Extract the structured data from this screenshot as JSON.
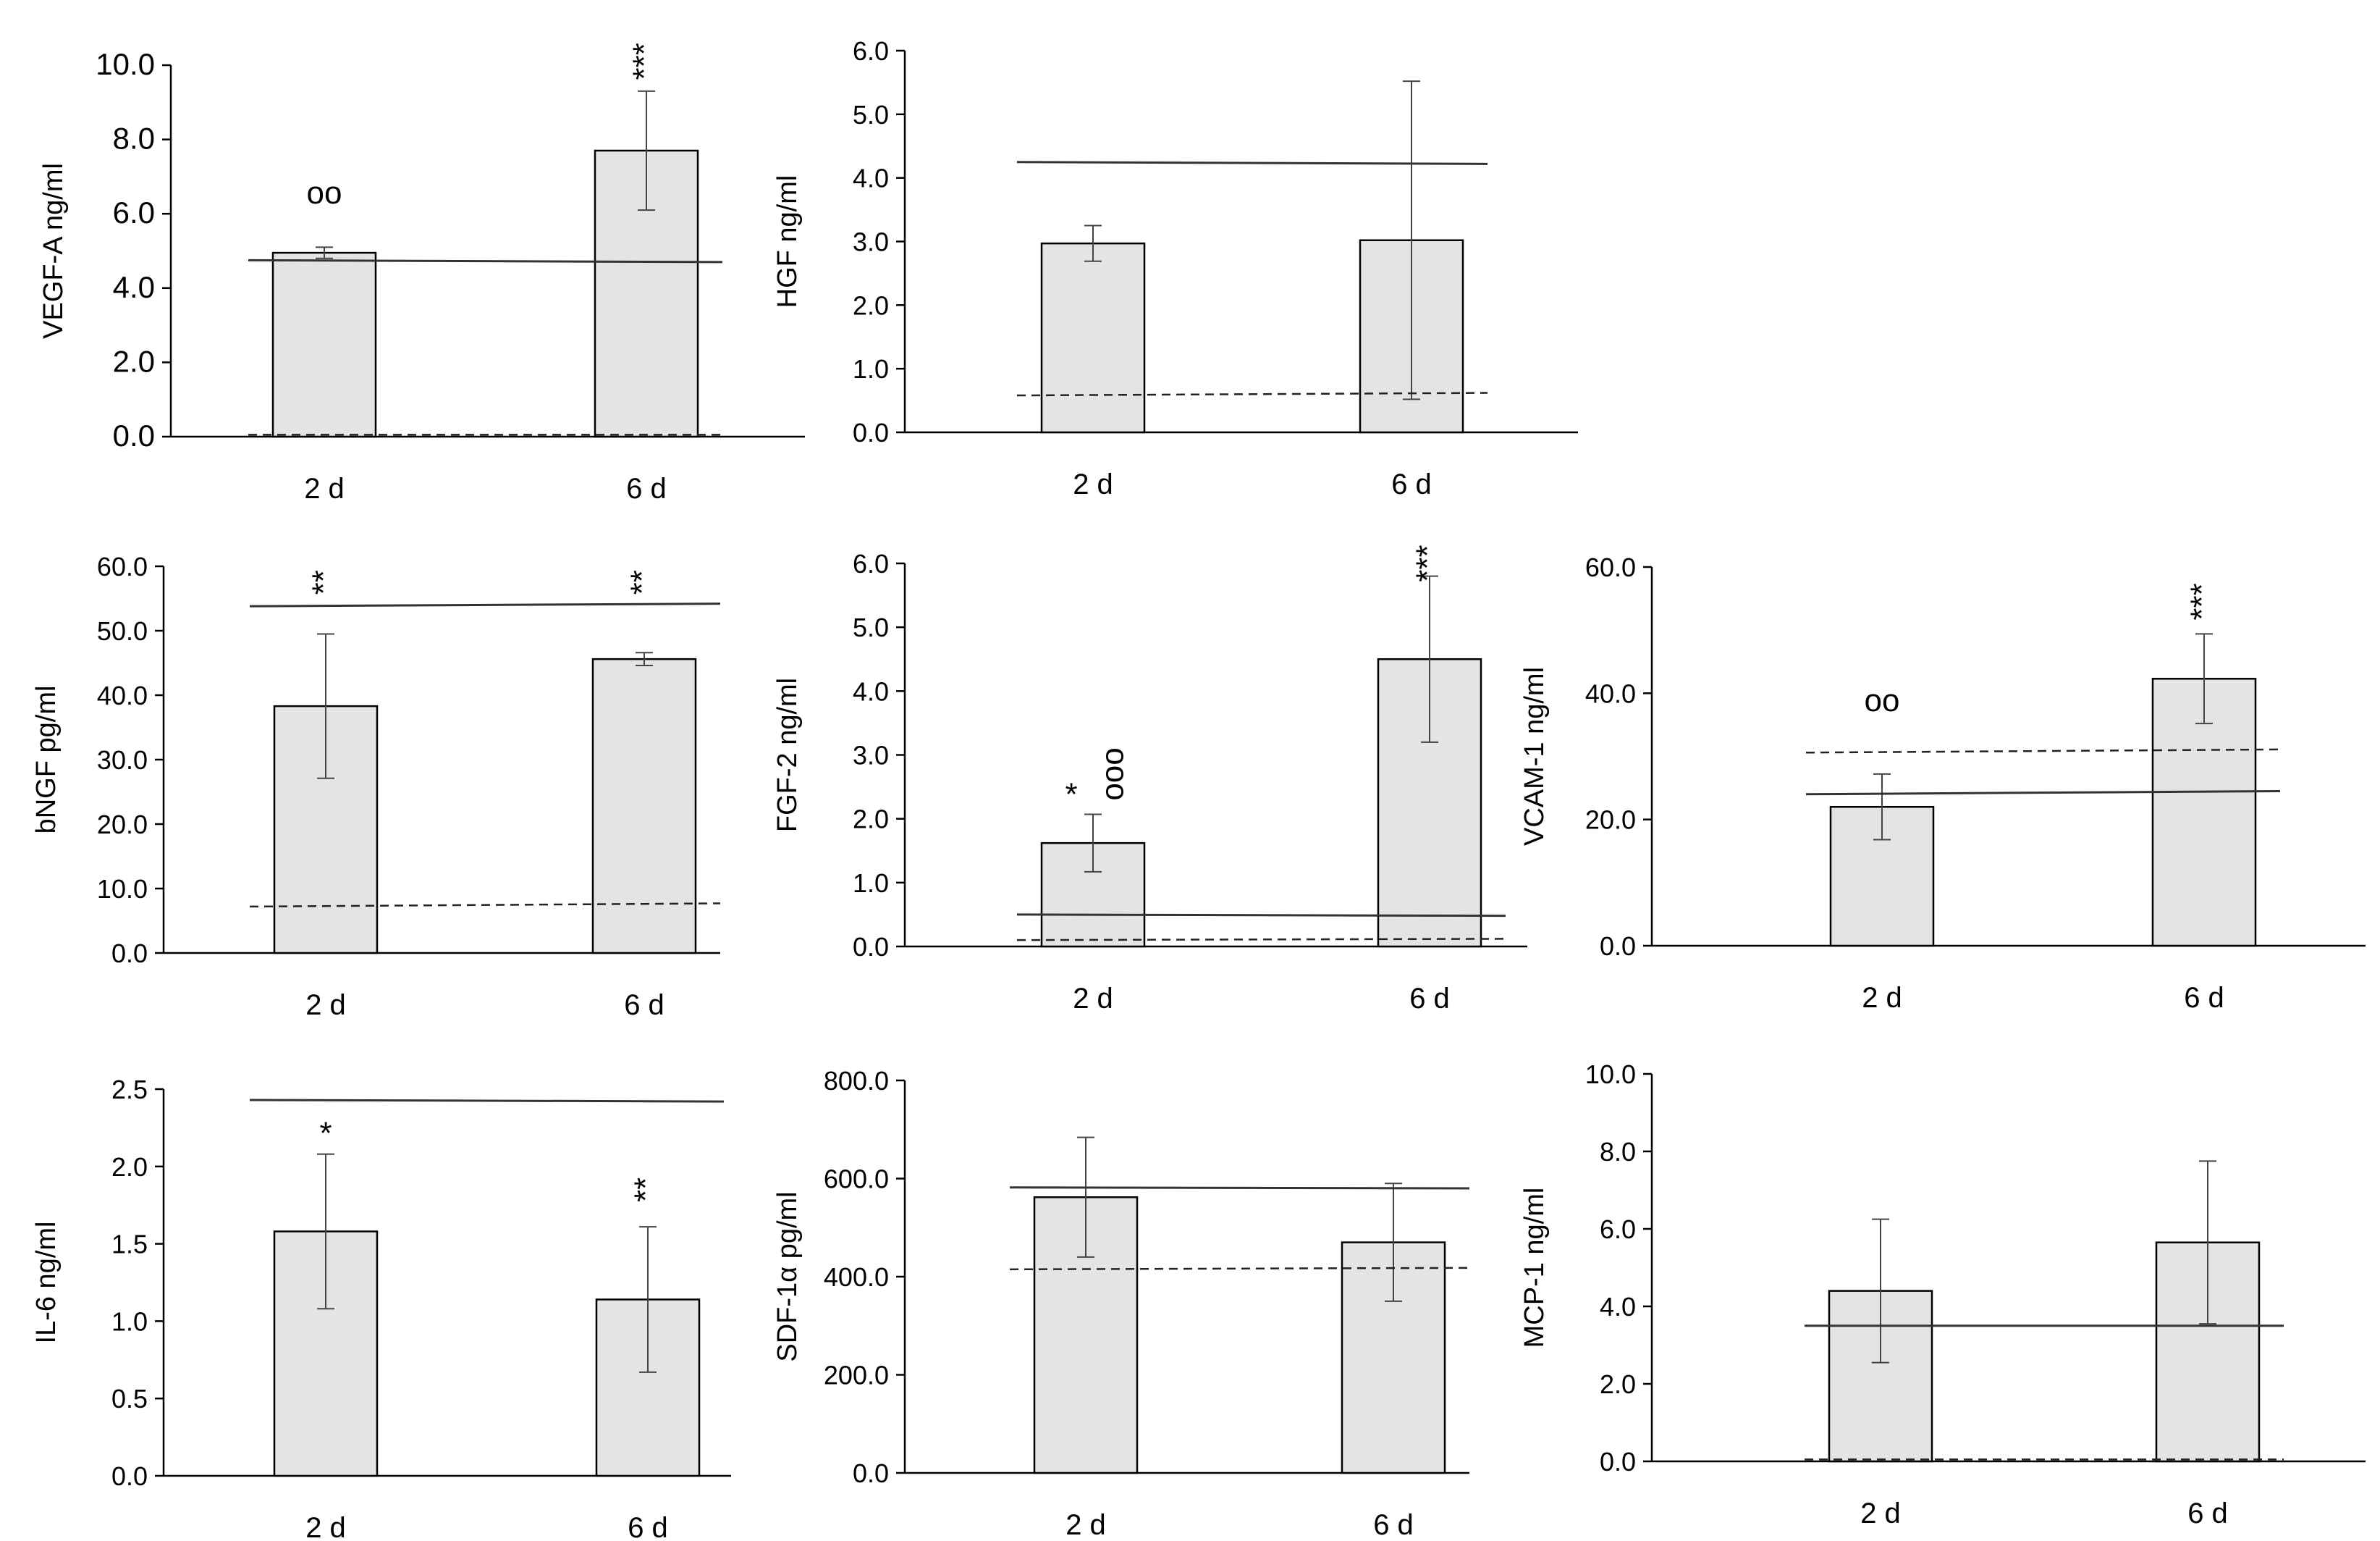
{
  "figure_title": "",
  "chart_data": [
    {
      "type": "bar",
      "title": "",
      "xlabel": "",
      "ylabel": "VEGF-A ng/ml",
      "ylim": [
        0,
        10
      ],
      "yticks": [
        "0.0",
        "2.0",
        "4.0",
        "6.0",
        "8.0",
        "10.0"
      ],
      "categories": [
        "2 d",
        "6 d"
      ],
      "series": [
        {
          "name": "VEGF-A",
          "values": [
            4.95,
            7.7
          ],
          "errors": [
            0.15,
            1.6
          ]
        }
      ],
      "annotations": [
        {
          "category": "2 d",
          "text": "oo",
          "value": 6.5,
          "rotated": false
        },
        {
          "category": "6 d",
          "text": "***",
          "value": 10.1,
          "rotated": true
        }
      ],
      "reference_lines": [
        {
          "style": "solid",
          "from": 4.75,
          "to": 4.7
        },
        {
          "style": "dashed",
          "from": 0.05,
          "to": 0.05
        }
      ]
    },
    {
      "type": "bar",
      "title": "",
      "xlabel": "",
      "ylabel": "HGF ng/ml",
      "ylim": [
        0,
        6
      ],
      "yticks": [
        "0.0",
        "1.0",
        "2.0",
        "3.0",
        "4.0",
        "5.0",
        "6.0"
      ],
      "categories": [
        "2 d",
        "6 d"
      ],
      "series": [
        {
          "name": "HGF",
          "values": [
            2.97,
            3.02
          ],
          "errors": [
            0.28,
            2.5
          ]
        }
      ],
      "annotations": [],
      "reference_lines": [
        {
          "style": "solid",
          "from": 4.25,
          "to": 4.22
        },
        {
          "style": "dashed",
          "from": 0.58,
          "to": 0.62
        }
      ]
    },
    {
      "type": "bar",
      "title": "",
      "xlabel": "",
      "ylabel": "bNGF pg/ml",
      "ylim": [
        0,
        60
      ],
      "yticks": [
        "0.0",
        "10.0",
        "20.0",
        "30.0",
        "40.0",
        "50.0",
        "60.0"
      ],
      "categories": [
        "2 d",
        "6 d"
      ],
      "series": [
        {
          "name": "bNGF",
          "values": [
            38.3,
            45.6
          ],
          "errors": [
            11.2,
            1.0
          ]
        }
      ],
      "annotations": [
        {
          "category": "2 d",
          "text": "**",
          "value": 57.5,
          "rotated": true
        },
        {
          "category": "6 d",
          "text": "**",
          "value": 57.5,
          "rotated": true
        }
      ],
      "reference_lines": [
        {
          "style": "solid",
          "from": 53.8,
          "to": 54.2
        },
        {
          "style": "dashed",
          "from": 7.2,
          "to": 7.7
        }
      ]
    },
    {
      "type": "bar",
      "title": "",
      "xlabel": "",
      "ylabel": "FGF-2 ng/ml",
      "ylim": [
        0,
        6
      ],
      "yticks": [
        "0.0",
        "1.0",
        "2.0",
        "3.0",
        "4.0",
        "5.0",
        "6.0"
      ],
      "categories": [
        "2 d",
        "6 d"
      ],
      "series": [
        {
          "name": "FGF-2",
          "values": [
            1.62,
            4.5
          ],
          "errors": [
            0.45,
            1.3
          ]
        }
      ],
      "annotations": [
        {
          "category": "2 d",
          "text": "*",
          "value": 2.35,
          "rotated": false,
          "dx": -0.3
        },
        {
          "category": "2 d",
          "text": "ooo",
          "value": 2.7,
          "rotated": true,
          "dx": 0.3
        },
        {
          "category": "6 d",
          "text": "***",
          "value": 6.0,
          "rotated": true
        }
      ],
      "reference_lines": [
        {
          "style": "solid",
          "from": 0.5,
          "to": 0.48
        },
        {
          "style": "dashed",
          "from": 0.1,
          "to": 0.12
        }
      ]
    },
    {
      "type": "bar",
      "title": "",
      "xlabel": "",
      "ylabel": "VCAM-1 ng/ml",
      "ylim": [
        0,
        60
      ],
      "yticks": [
        "0.0",
        "20.0",
        "40.0",
        "60.0"
      ],
      "categories": [
        "2 d",
        "6 d"
      ],
      "series": [
        {
          "name": "VCAM-1",
          "values": [
            22.0,
            42.3
          ],
          "errors": [
            5.2,
            7.1
          ]
        }
      ],
      "annotations": [
        {
          "category": "2 d",
          "text": "oo",
          "value": 38.5,
          "rotated": false
        },
        {
          "category": "6 d",
          "text": "***",
          "value": 54.5,
          "rotated": true
        }
      ],
      "reference_lines": [
        {
          "style": "solid",
          "from": 24.0,
          "to": 24.5
        },
        {
          "style": "dashed",
          "from": 30.6,
          "to": 31.1
        }
      ]
    },
    {
      "type": "bar",
      "title": "",
      "xlabel": "",
      "ylabel": "IL-6 ng/ml",
      "ylim": [
        0,
        2.5
      ],
      "yticks": [
        "0.0",
        "0.5",
        "1.0",
        "1.5",
        "2.0",
        "2.5"
      ],
      "categories": [
        "2 d",
        "6 d"
      ],
      "series": [
        {
          "name": "IL-6",
          "values": [
            1.58,
            1.14
          ],
          "errors": [
            0.5,
            0.47
          ]
        }
      ],
      "annotations": [
        {
          "category": "2 d",
          "text": "*",
          "value": 2.2,
          "rotated": false
        },
        {
          "category": "6 d",
          "text": "**",
          "value": 1.85,
          "rotated": true
        }
      ],
      "reference_lines": [
        {
          "style": "solid",
          "from": 2.43,
          "to": 2.42
        }
      ]
    },
    {
      "type": "bar",
      "title": "",
      "xlabel": "",
      "ylabel": "SDF-1α pg/ml",
      "ylim": [
        0,
        800
      ],
      "yticks": [
        "0.0",
        "200.0",
        "400.0",
        "600.0",
        "800.0"
      ],
      "categories": [
        "2 d",
        "6 d"
      ],
      "series": [
        {
          "name": "SDF-1α",
          "values": [
            562,
            470
          ],
          "errors": [
            122,
            120
          ]
        }
      ],
      "annotations": [],
      "reference_lines": [
        {
          "style": "solid",
          "from": 582,
          "to": 580
        },
        {
          "style": "dashed",
          "from": 415,
          "to": 418
        }
      ]
    },
    {
      "type": "bar",
      "title": "",
      "xlabel": "",
      "ylabel": "MCP-1 ng/ml",
      "ylim": [
        0,
        10
      ],
      "yticks": [
        "0.0",
        "2.0",
        "4.0",
        "6.0",
        "8.0",
        "10.0"
      ],
      "categories": [
        "2 d",
        "6 d"
      ],
      "series": [
        {
          "name": "MCP-1",
          "values": [
            4.4,
            5.65
          ],
          "errors": [
            1.85,
            2.1
          ]
        }
      ],
      "annotations": [],
      "reference_lines": [
        {
          "style": "solid",
          "from": 3.5,
          "to": 3.5
        },
        {
          "style": "dashed",
          "from": 0.05,
          "to": 0.05
        }
      ]
    }
  ]
}
